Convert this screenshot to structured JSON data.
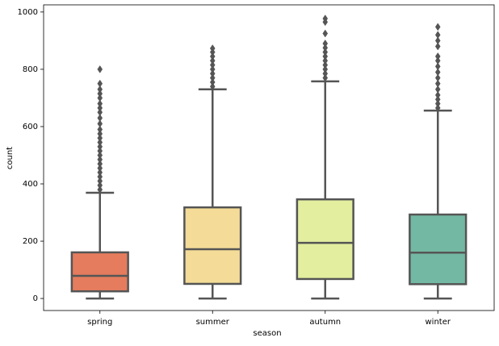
{
  "chart_data": {
    "type": "box",
    "x_label": "season",
    "y_label": "count",
    "categories": [
      "spring",
      "summer",
      "autumn",
      "winter"
    ],
    "colors": [
      "#e47c5d",
      "#f4dc98",
      "#e3ee9f",
      "#73b8a2"
    ],
    "edge_color": "#555555",
    "boxes": [
      {
        "min": 0,
        "q1": 25,
        "median": 79,
        "q3": 161,
        "max": 369,
        "outliers": [
          380,
          395,
          410,
          425,
          440,
          455,
          470,
          485,
          500,
          515,
          530,
          545,
          560,
          575,
          590,
          610,
          630,
          650,
          665,
          680,
          700,
          715,
          730,
          750,
          800
        ]
      },
      {
        "min": 0,
        "q1": 51,
        "median": 172,
        "q3": 318,
        "max": 730,
        "outliers": [
          740,
          755,
          770,
          785,
          800,
          815,
          830,
          845,
          860,
          873
        ]
      },
      {
        "min": 0,
        "q1": 68,
        "median": 194,
        "q3": 346,
        "max": 758,
        "outliers": [
          770,
          785,
          800,
          815,
          830,
          845,
          860,
          875,
          890,
          925,
          965,
          977
        ]
      },
      {
        "min": 0,
        "q1": 50,
        "median": 160,
        "q3": 293,
        "max": 656,
        "outliers": [
          665,
          680,
          695,
          710,
          730,
          750,
          770,
          790,
          810,
          830,
          845,
          880,
          900,
          920,
          948
        ]
      }
    ],
    "ylim": [
      -42,
      1025
    ],
    "yticks": [
      0,
      200,
      400,
      600,
      800,
      1000
    ]
  }
}
